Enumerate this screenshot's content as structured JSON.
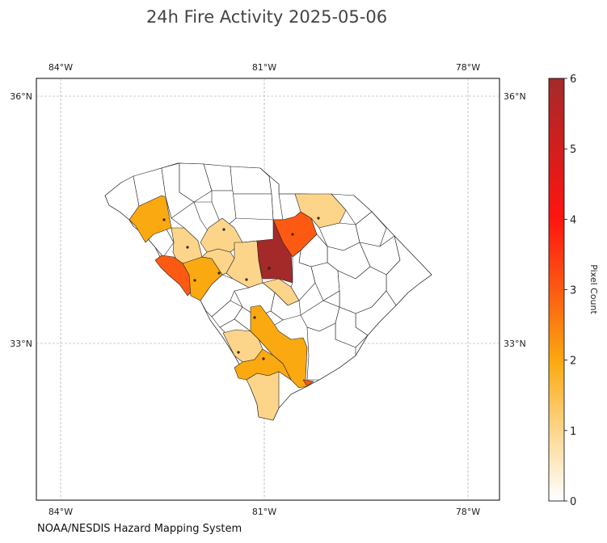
{
  "title": "24h Fire Activity 2025-05-06",
  "credit": "NOAA/NESDIS Hazard Mapping System",
  "map": {
    "lon_ticks_top": [
      "84°W",
      "81°W",
      "78°W"
    ],
    "lon_ticks_bottom": [
      "84°W",
      "81°W",
      "78°W"
    ],
    "lat_ticks_left": [
      "36°N",
      "33°N"
    ],
    "lat_ticks_right": [
      "36°N",
      "33°N"
    ],
    "grid": "dashed",
    "colors": {
      "0": "#ffffff",
      "1": "#fdd58a",
      "2": "#fba910",
      "3": "#fc5a12",
      "6": "#a42a2a"
    }
  },
  "colorbar": {
    "label": "Pixel Count",
    "ticks": [
      "0",
      "1",
      "2",
      "3",
      "4",
      "5",
      "6"
    ],
    "min": 0,
    "max": 6
  }
}
